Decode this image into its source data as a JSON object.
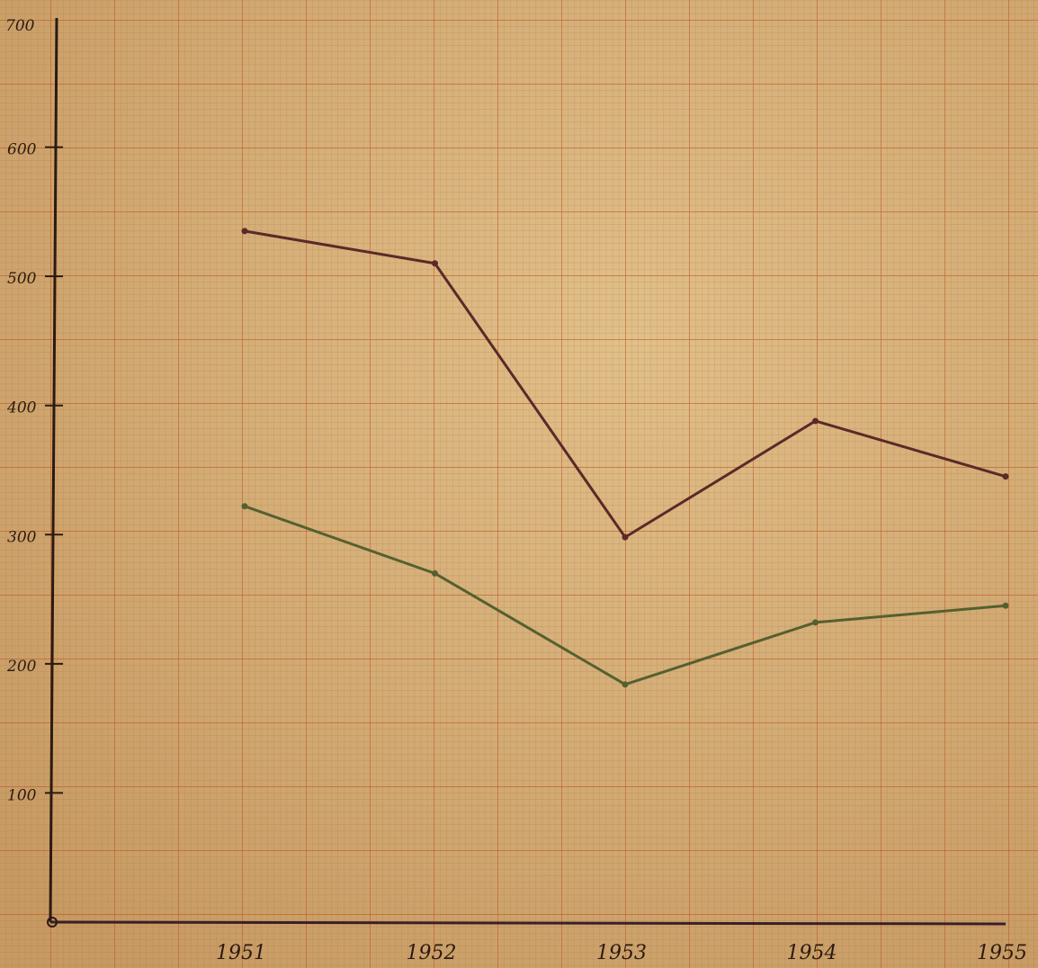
{
  "chart_data": {
    "type": "line",
    "title": "",
    "xlabel": "",
    "ylabel": "",
    "categories": [
      "1951",
      "1952",
      "1953",
      "1954",
      "1955"
    ],
    "x_tick_labels": [
      "1951",
      "1952",
      "1953",
      "1954",
      "1955"
    ],
    "y_ticks": [
      0,
      100,
      200,
      300,
      400,
      500,
      600
    ],
    "y_tick_labels": [
      "",
      "100",
      "200",
      "300",
      "400",
      "500",
      "600"
    ],
    "ylim": [
      0,
      700
    ],
    "y_axis_top_label": "700",
    "grid": true,
    "legend": "none",
    "series": [
      {
        "values": [
          535,
          510,
          298,
          388,
          345
        ],
        "color": "#5a2a28"
      },
      {
        "values": [
          322,
          270,
          184,
          232,
          245
        ],
        "color": "#55602f"
      }
    ]
  }
}
